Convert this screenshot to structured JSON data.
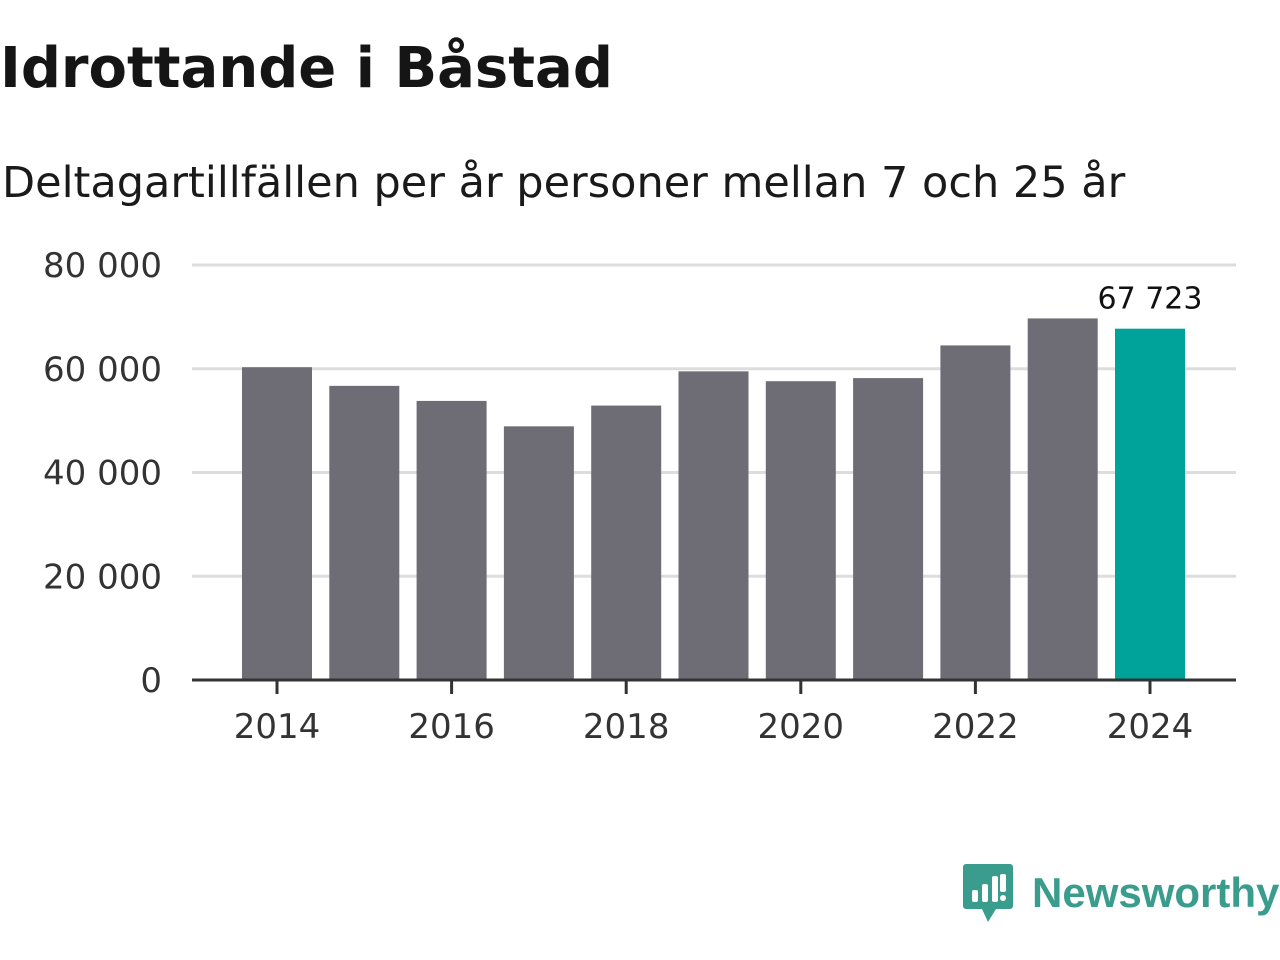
{
  "title": "Idrottande i Båstad",
  "subtitle": "Deltagartillfällen per år personer mellan 7 och 25 år",
  "brand": {
    "name": "Newsworthy",
    "logo_icon": "bar-chart-speech-bubble-icon",
    "color": "#3a9c8c"
  },
  "colors": {
    "bar_default": "#6e6d75",
    "bar_highlight": "#00a39a",
    "grid": "#dddddd",
    "axis": "#333333"
  },
  "chart_data": {
    "type": "bar",
    "title": "Idrottande i Båstad",
    "subtitle": "Deltagartillfällen per år personer mellan 7 och 25 år",
    "xlabel": "",
    "ylabel": "",
    "categories": [
      "2014",
      "2015",
      "2016",
      "2017",
      "2018",
      "2019",
      "2020",
      "2021",
      "2022",
      "2023",
      "2024"
    ],
    "values": [
      60300,
      56700,
      53800,
      48900,
      52900,
      59500,
      57600,
      58200,
      64500,
      69700,
      67723
    ],
    "highlight_index": 10,
    "highlight_label": "67 723",
    "ylim": [
      0,
      80000
    ],
    "yticks": [
      0,
      20000,
      40000,
      60000,
      80000
    ],
    "ytick_labels": [
      "0",
      "20 000",
      "40 000",
      "60 000",
      "80 000"
    ],
    "xtick_labels": [
      "2014",
      "2016",
      "2018",
      "2020",
      "2022",
      "2024"
    ],
    "xtick_years": [
      "2014",
      "2016",
      "2018",
      "2020",
      "2022",
      "2024"
    ],
    "grid": true,
    "legend": "none"
  }
}
